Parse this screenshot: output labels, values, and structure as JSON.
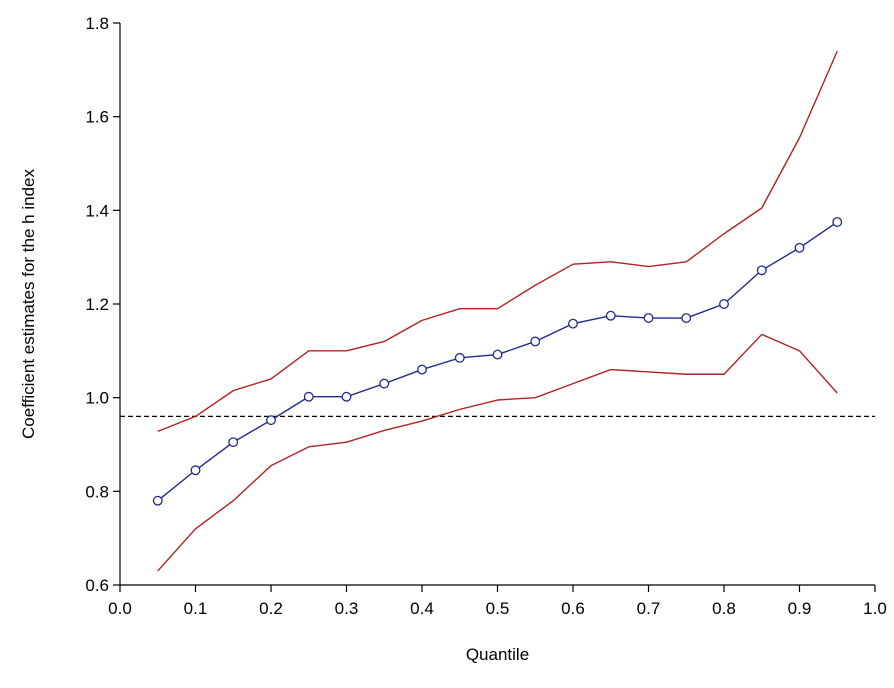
{
  "chart_data": {
    "type": "line",
    "title": "",
    "xlabel": "Quantile",
    "ylabel": "Coefficient estimates for the h index",
    "xlim": [
      0.0,
      1.0
    ],
    "ylim": [
      0.6,
      1.8
    ],
    "x_ticks": [
      0.0,
      0.1,
      0.2,
      0.3,
      0.4,
      0.5,
      0.6,
      0.7,
      0.8,
      0.9,
      1.0
    ],
    "x_tick_labels": [
      "0.0",
      "0.1",
      "0.2",
      "0.3",
      "0.4",
      "0.5",
      "0.6",
      "0.7",
      "0.8",
      "0.9",
      "1.0"
    ],
    "y_ticks": [
      0.6,
      0.8,
      1.0,
      1.2,
      1.4,
      1.6,
      1.8
    ],
    "y_tick_labels": [
      "0.6",
      "0.8",
      "1.0",
      "1.2",
      "1.4",
      "1.6",
      "1.8"
    ],
    "grid": false,
    "legend": "none",
    "reference_line": {
      "y": 0.96,
      "style": "dashed",
      "color": "#000000"
    },
    "x": [
      0.05,
      0.1,
      0.15,
      0.2,
      0.25,
      0.3,
      0.35,
      0.4,
      0.45,
      0.5,
      0.55,
      0.6,
      0.65,
      0.7,
      0.75,
      0.8,
      0.85,
      0.9,
      0.95
    ],
    "series": [
      {
        "role": "estimate",
        "color": "#1f2a8c",
        "marker": "circle",
        "values": [
          0.78,
          0.845,
          0.905,
          0.952,
          1.002,
          1.002,
          1.03,
          1.06,
          1.085,
          1.092,
          1.12,
          1.158,
          1.175,
          1.17,
          1.17,
          1.2,
          1.272,
          1.32,
          1.375
        ]
      },
      {
        "role": "upper-bound",
        "color": "#b22222",
        "marker": "none",
        "values": [
          0.928,
          0.96,
          1.015,
          1.04,
          1.1,
          1.1,
          1.12,
          1.165,
          1.19,
          1.19,
          1.24,
          1.285,
          1.29,
          1.28,
          1.29,
          1.35,
          1.405,
          1.555,
          1.74
        ]
      },
      {
        "role": "lower-bound",
        "color": "#b22222",
        "marker": "none",
        "values": [
          0.63,
          0.72,
          0.78,
          0.855,
          0.895,
          0.905,
          0.93,
          0.95,
          0.975,
          0.995,
          1.0,
          1.03,
          1.06,
          1.055,
          1.05,
          1.05,
          1.135,
          1.1,
          1.01
        ]
      }
    ]
  }
}
